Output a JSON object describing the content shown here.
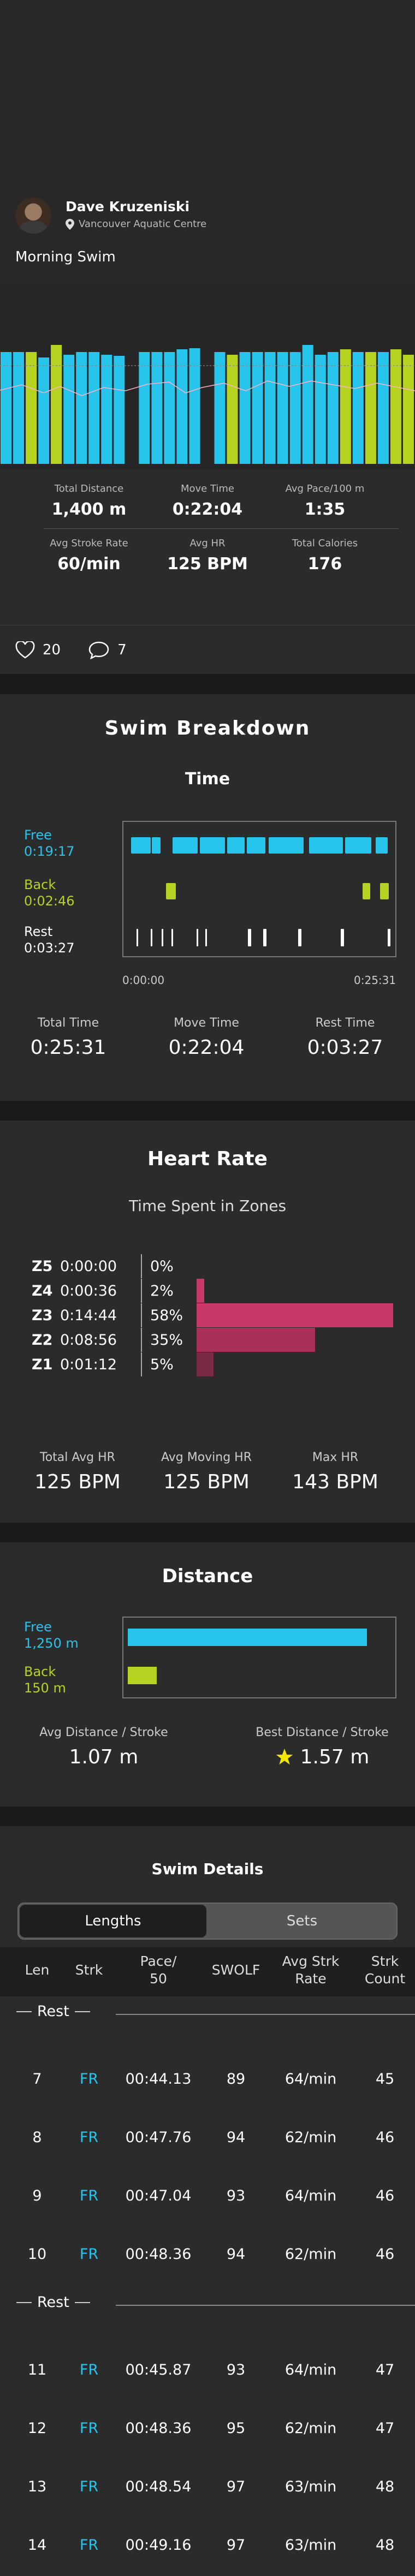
{
  "header": {
    "user_name": "Dave Kruzeniski",
    "location": "Vancouver Aquatic Centre",
    "activity_title": "Morning Swim"
  },
  "summary_stats": [
    {
      "label": "Total Distance",
      "value": "1,400 m"
    },
    {
      "label": "Move Time",
      "value": "0:22:04"
    },
    {
      "label": "Avg Pace/100 m",
      "value": "1:35"
    },
    {
      "label": "Avg Stroke Rate",
      "value": "60/min"
    },
    {
      "label": "Avg HR",
      "value": "125 BPM"
    },
    {
      "label": "Total Calories",
      "value": "176"
    }
  ],
  "social": {
    "likes": "20",
    "comments": "7"
  },
  "breakdown": {
    "title": "Swim Breakdown",
    "time_title": "Time",
    "legend": [
      {
        "name": "Free",
        "value": "0:19:17"
      },
      {
        "name": "Back",
        "value": "0:02:46"
      },
      {
        "name": "Rest",
        "value": "0:03:27"
      }
    ],
    "axis_start": "0:00:00",
    "axis_end": "0:25:31",
    "totals": [
      {
        "label": "Total Time",
        "value": "0:25:31"
      },
      {
        "label": "Move Time",
        "value": "0:22:04"
      },
      {
        "label": "Rest Time",
        "value": "0:03:27"
      }
    ]
  },
  "heart_rate": {
    "title": "Heart Rate",
    "subtitle": "Time Spent in Zones",
    "zones": [
      {
        "zone": "Z5",
        "time": "0:00:00",
        "pct": "0%",
        "fraction": 0.0
      },
      {
        "zone": "Z4",
        "time": "0:00:36",
        "pct": "2%",
        "fraction": 0.02
      },
      {
        "zone": "Z3",
        "time": "0:14:44",
        "pct": "58%",
        "fraction": 0.58
      },
      {
        "zone": "Z2",
        "time": "0:08:56",
        "pct": "35%",
        "fraction": 0.35
      },
      {
        "zone": "Z1",
        "time": "0:01:12",
        "pct": "5%",
        "fraction": 0.05
      }
    ],
    "stats": [
      {
        "label": "Total Avg HR",
        "value": "125 BPM"
      },
      {
        "label": "Avg Moving HR",
        "value": "125 BPM"
      },
      {
        "label": "Max HR",
        "value": "143 BPM"
      }
    ]
  },
  "distance": {
    "title": "Distance",
    "legend": [
      {
        "name": "Free",
        "value": "1,250 m",
        "meters": 1250
      },
      {
        "name": "Back",
        "value": "150 m",
        "meters": 150
      }
    ],
    "stats": [
      {
        "label": "Avg Distance / Stroke",
        "value": "1.07 m"
      },
      {
        "label": "Best Distance / Stroke",
        "value": "1.57 m"
      }
    ]
  },
  "swim_details": {
    "title": "Swim Details",
    "tabs": [
      "Lengths",
      "Sets"
    ],
    "columns": [
      "Len",
      "Strk",
      "Pace/\n50",
      "SWOLF",
      "Avg Strk\nRate",
      "Strk\nCount"
    ],
    "rest_label": "Rest",
    "rows": [
      {
        "len": "7",
        "strk": "FR",
        "pace": "00:44.13",
        "swolf": "89",
        "rate": "64/min",
        "count": "45"
      },
      {
        "len": "8",
        "strk": "FR",
        "pace": "00:47.76",
        "swolf": "94",
        "rate": "62/min",
        "count": "46"
      },
      {
        "len": "9",
        "strk": "FR",
        "pace": "00:47.04",
        "swolf": "93",
        "rate": "64/min",
        "count": "46"
      },
      {
        "len": "10",
        "strk": "FR",
        "pace": "00:48.36",
        "swolf": "94",
        "rate": "62/min",
        "count": "46"
      },
      {
        "len": "11",
        "strk": "FR",
        "pace": "00:45.87",
        "swolf": "93",
        "rate": "64/min",
        "count": "47"
      },
      {
        "len": "12",
        "strk": "FR",
        "pace": "00:48.36",
        "swolf": "95",
        "rate": "62/min",
        "count": "47"
      },
      {
        "len": "13",
        "strk": "FR",
        "pace": "00:48.54",
        "swolf": "97",
        "rate": "63/min",
        "count": "48"
      },
      {
        "len": "14",
        "strk": "FR",
        "pace": "00:49.16",
        "swolf": "97",
        "rate": "63/min",
        "count": "48"
      }
    ]
  },
  "colors": {
    "free": "#27c4ec",
    "back": "#b5d320",
    "rest": "#ffffff",
    "hr_z3": "#c8386a",
    "hr_z2": "#a8305a",
    "hr_z1": "#7a2a46",
    "star": "#f5e800"
  }
}
